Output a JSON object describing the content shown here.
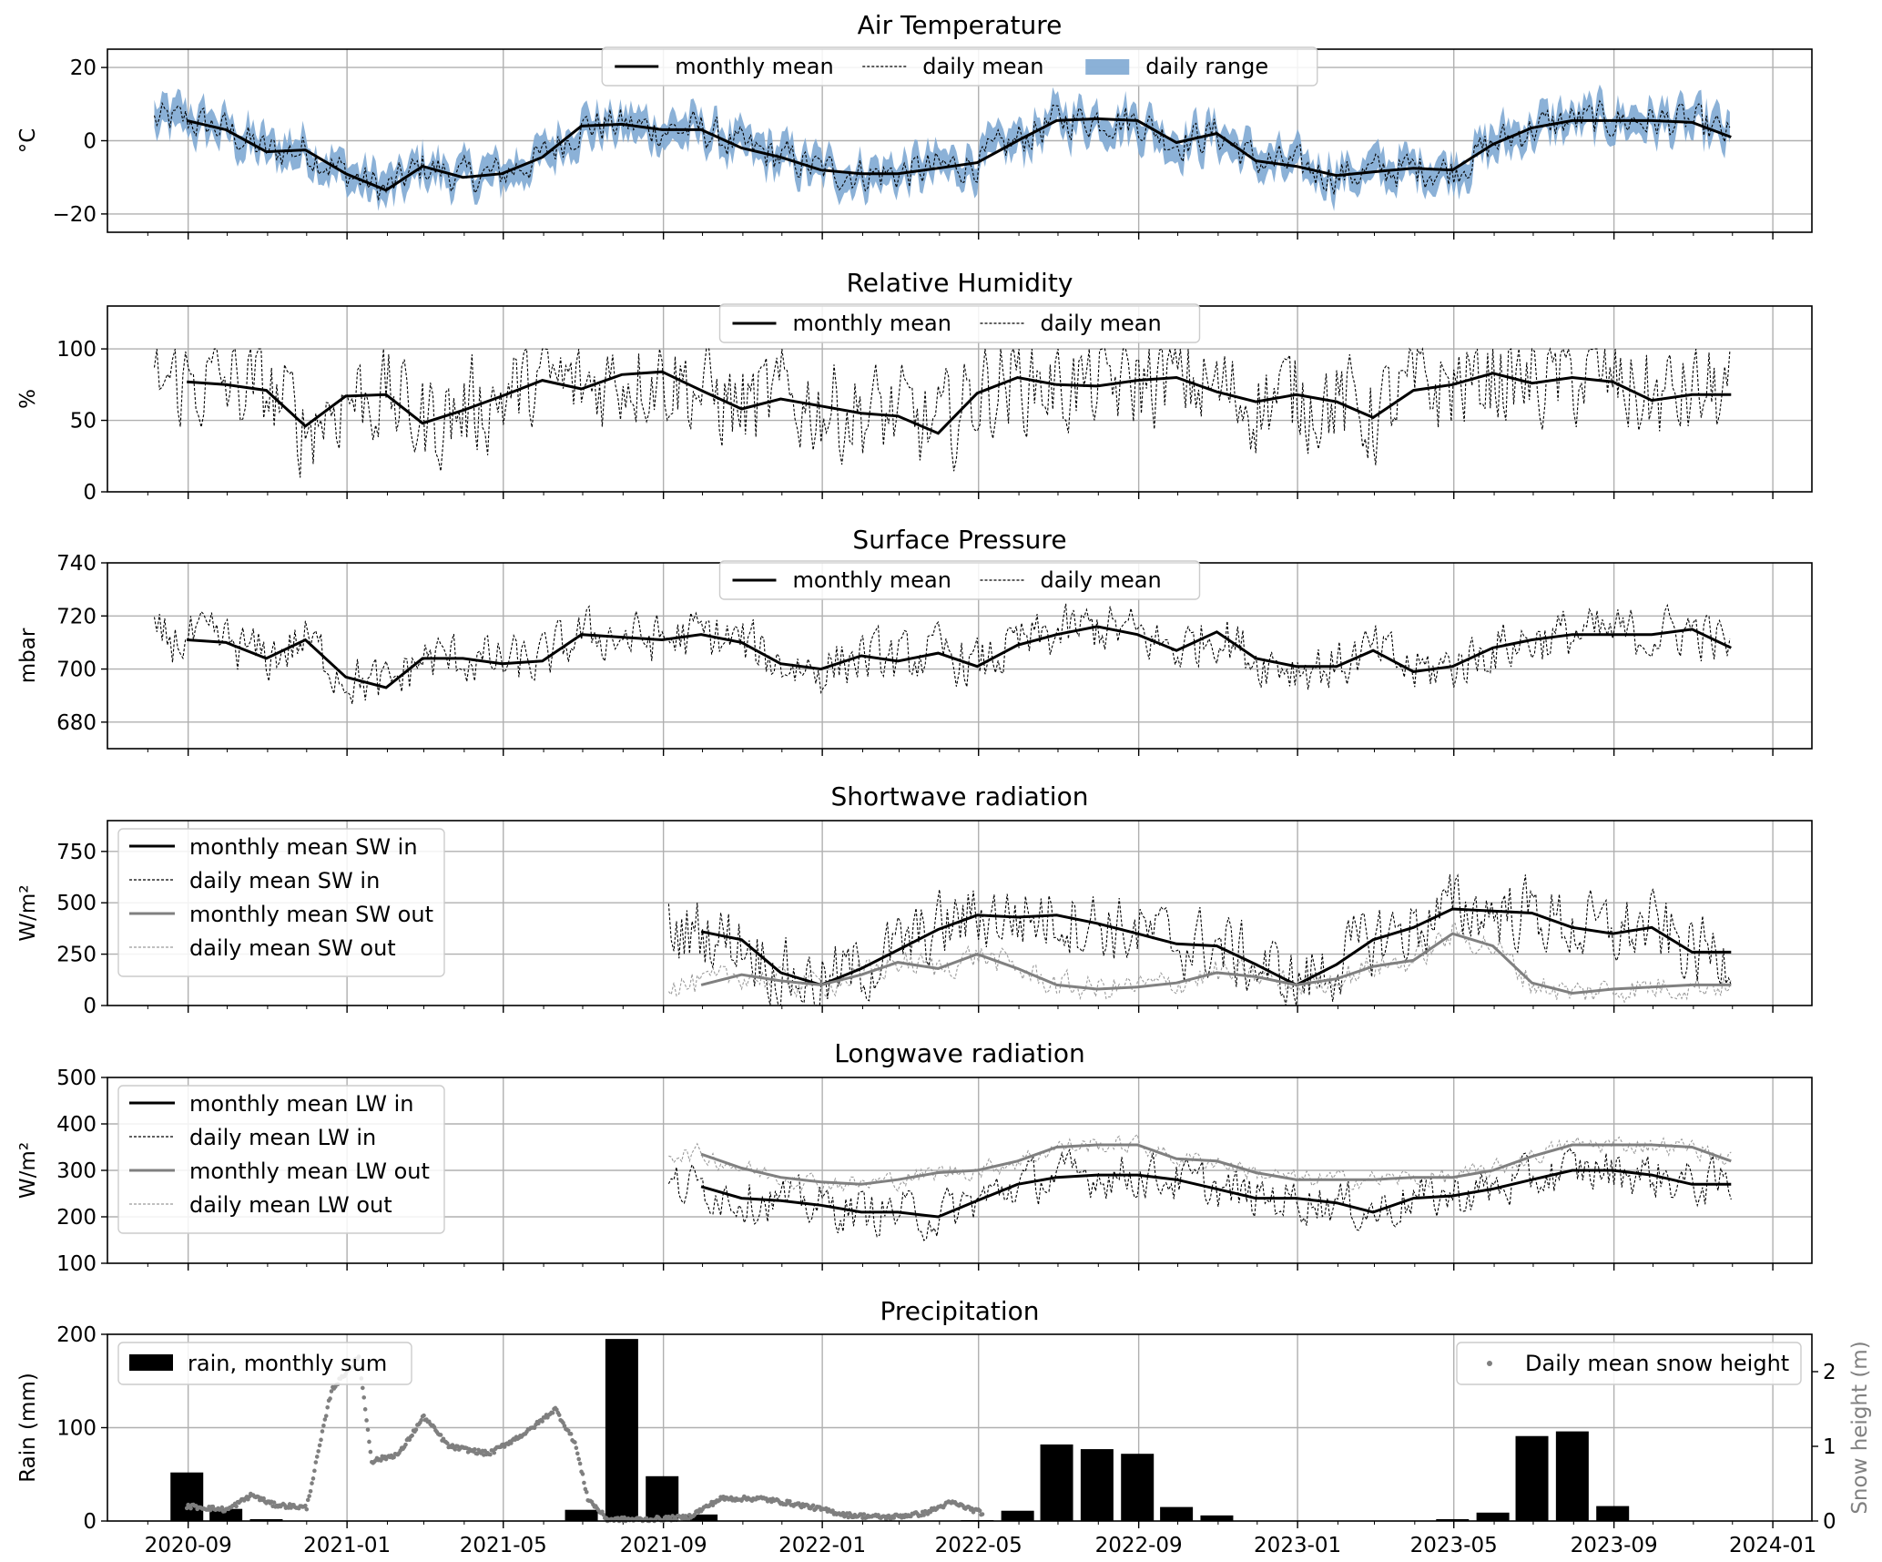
{
  "chart_data": [
    {
      "type": "line",
      "id": "temp",
      "title": "Air Temperature",
      "ylabel": "°C",
      "ylim": [
        -25,
        25
      ],
      "yticks": [
        -20,
        0,
        20
      ],
      "ytick_labels": [
        "−20",
        "0",
        "20"
      ],
      "legend": {
        "placement": "top-center",
        "layout": "row",
        "entries": [
          "monthly mean",
          "daily mean",
          "daily range"
        ]
      },
      "series": [
        {
          "name": "monthly mean",
          "style": "solid",
          "color": "#000000",
          "x": [
            "2020-08-31",
            "2020-09-30",
            "2020-10-31",
            "2020-11-30",
            "2020-12-31",
            "2021-01-31",
            "2021-02-28",
            "2021-03-31",
            "2021-04-30",
            "2021-05-31",
            "2021-06-30",
            "2021-07-31",
            "2021-08-31",
            "2021-09-30",
            "2021-10-31",
            "2021-11-30",
            "2021-12-31",
            "2022-01-31",
            "2022-02-28",
            "2022-03-31",
            "2022-04-30",
            "2022-05-31",
            "2022-06-30",
            "2022-07-31",
            "2022-08-31",
            "2022-09-30",
            "2022-10-31",
            "2022-11-30",
            "2022-12-31",
            "2023-01-31",
            "2023-02-28",
            "2023-03-31",
            "2023-04-30",
            "2023-05-31",
            "2023-06-30",
            "2023-07-31",
            "2023-08-31",
            "2023-09-30",
            "2023-10-31",
            "2023-11-30"
          ],
          "y": [
            5.5,
            3,
            -3,
            -2.5,
            -9,
            -13.5,
            -7,
            -10,
            -9,
            -4.5,
            4,
            4.5,
            3,
            3,
            -2,
            -4.5,
            -8,
            -9,
            -9,
            -7.5,
            -6,
            0,
            5.5,
            6,
            5.5,
            -0.5,
            2,
            -5.5,
            -7,
            -9.5,
            -8.5,
            -7.5,
            -8,
            -1,
            3.5,
            5.5,
            5.5,
            5.5,
            5,
            1
          ]
        },
        {
          "name": "daily mean",
          "style": "dashed",
          "color": "#000000",
          "note": "daily values fluctuating about the monthly mean"
        },
        {
          "name": "daily range",
          "style": "fill",
          "color": "#7ea9d3"
        }
      ]
    },
    {
      "type": "line",
      "id": "rh",
      "title": "Relative Humidity",
      "ylabel": "%",
      "ylim": [
        0,
        130
      ],
      "yticks": [
        0,
        50,
        100
      ],
      "ytick_labels": [
        "0",
        "50",
        "100"
      ],
      "legend": {
        "placement": "top-center",
        "layout": "row",
        "entries": [
          "monthly mean",
          "daily mean"
        ]
      },
      "series": [
        {
          "name": "monthly mean",
          "style": "solid",
          "color": "#000000",
          "x": [
            "2020-08-31",
            "2020-09-30",
            "2020-10-31",
            "2020-11-30",
            "2020-12-31",
            "2021-01-31",
            "2021-02-28",
            "2021-03-31",
            "2021-04-30",
            "2021-05-31",
            "2021-06-30",
            "2021-07-31",
            "2021-08-31",
            "2021-09-30",
            "2021-10-31",
            "2021-11-30",
            "2021-12-31",
            "2022-01-31",
            "2022-02-28",
            "2022-03-31",
            "2022-04-30",
            "2022-05-31",
            "2022-06-30",
            "2022-07-31",
            "2022-08-31",
            "2022-09-30",
            "2022-10-31",
            "2022-11-30",
            "2022-12-31",
            "2023-01-31",
            "2023-02-28",
            "2023-03-31",
            "2023-04-30",
            "2023-05-31",
            "2023-06-30",
            "2023-07-31",
            "2023-08-31",
            "2023-09-30",
            "2023-10-31",
            "2023-11-30"
          ],
          "y": [
            77,
            75,
            71,
            46,
            67,
            68,
            48,
            57,
            67,
            78,
            72,
            82,
            84,
            71,
            58,
            65,
            60,
            55,
            53,
            41,
            69,
            80,
            75,
            74,
            78,
            80,
            70,
            63,
            68,
            63,
            52,
            71,
            75,
            83,
            76,
            80,
            77,
            64,
            68,
            68
          ]
        },
        {
          "name": "daily mean",
          "style": "dashed",
          "color": "#000000"
        }
      ]
    },
    {
      "type": "line",
      "id": "pres",
      "title": "Surface Pressure",
      "ylabel": "mbar",
      "ylim": [
        670,
        740
      ],
      "yticks": [
        680,
        700,
        720,
        740
      ],
      "ytick_labels": [
        "680",
        "700",
        "720",
        "740"
      ],
      "legend": {
        "placement": "top-center",
        "layout": "row",
        "entries": [
          "monthly mean",
          "daily mean"
        ]
      },
      "series": [
        {
          "name": "monthly mean",
          "style": "solid",
          "color": "#000000",
          "x": [
            "2020-08-31",
            "2020-09-30",
            "2020-10-31",
            "2020-11-30",
            "2020-12-31",
            "2021-01-31",
            "2021-02-28",
            "2021-03-31",
            "2021-04-30",
            "2021-05-31",
            "2021-06-30",
            "2021-07-31",
            "2021-08-31",
            "2021-09-30",
            "2021-10-31",
            "2021-11-30",
            "2021-12-31",
            "2022-01-31",
            "2022-02-28",
            "2022-03-31",
            "2022-04-30",
            "2022-05-31",
            "2022-06-30",
            "2022-07-31",
            "2022-08-31",
            "2022-09-30",
            "2022-10-31",
            "2022-11-30",
            "2022-12-31",
            "2023-01-31",
            "2023-02-28",
            "2023-03-31",
            "2023-04-30",
            "2023-05-31",
            "2023-06-30",
            "2023-07-31",
            "2023-08-31",
            "2023-09-30",
            "2023-10-31",
            "2023-11-30"
          ],
          "y": [
            711,
            710,
            704,
            711,
            697,
            693,
            704,
            704,
            702,
            703,
            713,
            712,
            711,
            713,
            710,
            702,
            700,
            705,
            703,
            706,
            701,
            709,
            713,
            716,
            713,
            707,
            714,
            704,
            701,
            701,
            707,
            699,
            701,
            708,
            711,
            713,
            713,
            713,
            715,
            708
          ]
        },
        {
          "name": "daily mean",
          "style": "dashed",
          "color": "#000000"
        }
      ]
    },
    {
      "type": "line",
      "id": "sw",
      "title": "Shortwave radiation",
      "ylabel": "W/m²",
      "ylim": [
        0,
        900
      ],
      "yticks": [
        0,
        250,
        500,
        750
      ],
      "ytick_labels": [
        "0",
        "250",
        "500",
        "750"
      ],
      "legend": {
        "placement": "top-left",
        "layout": "column",
        "entries": [
          "monthly mean SW in",
          "daily mean SW in",
          "monthly mean SW out",
          "daily mean SW out"
        ]
      },
      "series": [
        {
          "name": "monthly mean SW in",
          "style": "solid",
          "color": "#000000",
          "x": [
            "2021-09-30",
            "2021-10-31",
            "2021-11-30",
            "2021-12-31",
            "2022-01-31",
            "2022-02-28",
            "2022-03-31",
            "2022-04-30",
            "2022-05-31",
            "2022-06-30",
            "2022-07-31",
            "2022-08-31",
            "2022-09-30",
            "2022-10-31",
            "2022-11-30",
            "2022-12-31",
            "2023-01-31",
            "2023-02-28",
            "2023-03-31",
            "2023-04-30",
            "2023-05-31",
            "2023-06-30",
            "2023-07-31",
            "2023-08-31",
            "2023-09-30",
            "2023-10-31",
            "2023-11-30"
          ],
          "y": [
            360,
            320,
            160,
            100,
            180,
            270,
            370,
            440,
            430,
            440,
            400,
            350,
            300,
            290,
            200,
            100,
            200,
            320,
            380,
            470,
            460,
            450,
            380,
            350,
            380,
            260,
            260
          ]
        },
        {
          "name": "daily mean SW in",
          "style": "dashed",
          "color": "#000000"
        },
        {
          "name": "monthly mean SW out",
          "style": "solid",
          "color": "#808080",
          "x": [
            "2021-09-30",
            "2021-10-31",
            "2021-11-30",
            "2021-12-31",
            "2022-01-31",
            "2022-02-28",
            "2022-03-31",
            "2022-04-30",
            "2022-05-31",
            "2022-06-30",
            "2022-07-31",
            "2022-08-31",
            "2022-09-30",
            "2022-10-31",
            "2022-11-30",
            "2022-12-31",
            "2023-01-31",
            "2023-02-28",
            "2023-03-31",
            "2023-04-30",
            "2023-05-31",
            "2023-06-30",
            "2023-07-31",
            "2023-08-31",
            "2023-09-30",
            "2023-10-31",
            "2023-11-30"
          ],
          "y": [
            100,
            150,
            120,
            100,
            150,
            210,
            180,
            250,
            180,
            100,
            80,
            90,
            110,
            160,
            140,
            100,
            130,
            190,
            220,
            350,
            290,
            110,
            60,
            80,
            90,
            100,
            100
          ]
        },
        {
          "name": "daily mean SW out",
          "style": "dashed",
          "color": "#9a9a9a"
        }
      ]
    },
    {
      "type": "line",
      "id": "lw",
      "title": "Longwave radiation",
      "ylabel": "W/m²",
      "ylim": [
        100,
        500
      ],
      "yticks": [
        100,
        200,
        300,
        400,
        500
      ],
      "ytick_labels": [
        "100",
        "200",
        "300",
        "400",
        "500"
      ],
      "legend": {
        "placement": "top-left",
        "layout": "column",
        "entries": [
          "monthly mean LW in",
          "daily mean LW in",
          "monthly mean LW out",
          "daily mean LW out"
        ]
      },
      "series": [
        {
          "name": "monthly mean LW in",
          "style": "solid",
          "color": "#000000",
          "x": [
            "2021-09-30",
            "2021-10-31",
            "2021-11-30",
            "2021-12-31",
            "2022-01-31",
            "2022-02-28",
            "2022-03-31",
            "2022-04-30",
            "2022-05-31",
            "2022-06-30",
            "2022-07-31",
            "2022-08-31",
            "2022-09-30",
            "2022-10-31",
            "2022-11-30",
            "2022-12-31",
            "2023-01-31",
            "2023-02-28",
            "2023-03-31",
            "2023-04-30",
            "2023-05-31",
            "2023-06-30",
            "2023-07-31",
            "2023-08-31",
            "2023-09-30",
            "2023-10-31",
            "2023-11-30"
          ],
          "y": [
            265,
            240,
            235,
            225,
            210,
            210,
            200,
            235,
            270,
            285,
            290,
            290,
            280,
            260,
            240,
            240,
            230,
            210,
            240,
            245,
            260,
            280,
            300,
            300,
            290,
            270,
            270
          ]
        },
        {
          "name": "daily mean LW in",
          "style": "dashed",
          "color": "#000000"
        },
        {
          "name": "monthly mean LW out",
          "style": "solid",
          "color": "#808080",
          "x": [
            "2021-09-30",
            "2021-10-31",
            "2021-11-30",
            "2021-12-31",
            "2022-01-31",
            "2022-02-28",
            "2022-03-31",
            "2022-04-30",
            "2022-05-31",
            "2022-06-30",
            "2022-07-31",
            "2022-08-31",
            "2022-09-30",
            "2022-10-31",
            "2022-11-30",
            "2022-12-31",
            "2023-01-31",
            "2023-02-28",
            "2023-03-31",
            "2023-04-30",
            "2023-05-31",
            "2023-06-30",
            "2023-07-31",
            "2023-08-31",
            "2023-09-30",
            "2023-10-31",
            "2023-11-30"
          ],
          "y": [
            335,
            305,
            285,
            275,
            270,
            280,
            295,
            300,
            320,
            350,
            355,
            355,
            325,
            320,
            295,
            280,
            280,
            280,
            285,
            285,
            300,
            330,
            355,
            355,
            355,
            350,
            320
          ]
        },
        {
          "name": "daily mean LW out",
          "style": "dashed",
          "color": "#9a9a9a"
        }
      ]
    },
    {
      "type": "bar",
      "id": "precip",
      "title": "Precipitation",
      "ylabel": "Rain (mm)",
      "ylim": [
        0,
        200
      ],
      "yticks": [
        0,
        100,
        200
      ],
      "ytick_labels": [
        "0",
        "100",
        "200"
      ],
      "y2label": "Snow height (m)",
      "y2lim": [
        0,
        2.5
      ],
      "y2ticks": [
        0,
        1,
        2
      ],
      "y2tick_labels": [
        "0",
        "1",
        "2"
      ],
      "legend": {
        "entries": [
          "rain, monthly sum",
          "Daily mean snow height"
        ],
        "placement": [
          "upper-left",
          "upper-right"
        ]
      },
      "bars": {
        "name": "rain, monthly sum",
        "color": "#000000",
        "x": [
          "2020-08-31",
          "2020-09-30",
          "2020-10-31",
          "2021-06-30",
          "2021-07-31",
          "2021-08-31",
          "2021-09-30",
          "2022-04-30",
          "2022-05-31",
          "2022-06-30",
          "2022-07-31",
          "2022-08-31",
          "2022-09-30",
          "2022-10-31",
          "2023-04-30",
          "2023-05-31",
          "2023-06-30",
          "2023-07-31",
          "2023-08-31",
          "2023-09-30"
        ],
        "y": [
          52,
          13,
          2,
          12,
          195,
          48,
          7,
          1,
          11,
          82,
          77,
          72,
          15,
          6,
          2,
          9,
          91,
          96,
          16,
          0
        ]
      },
      "snow": {
        "name": "Daily mean snow height",
        "color": "#7f7f7f",
        "points": [
          [
            "2020-08-31",
            0.2
          ],
          [
            "2020-10-01",
            0.15
          ],
          [
            "2020-10-20",
            0.35
          ],
          [
            "2020-11-05",
            0.22
          ],
          [
            "2020-12-01",
            0.18
          ],
          [
            "2020-12-20",
            1.75
          ],
          [
            "2021-01-10",
            2.2
          ],
          [
            "2021-01-20",
            0.8
          ],
          [
            "2021-02-10",
            0.9
          ],
          [
            "2021-03-01",
            1.4
          ],
          [
            "2021-03-20",
            1.0
          ],
          [
            "2021-04-20",
            0.9
          ],
          [
            "2021-05-20",
            1.2
          ],
          [
            "2021-06-10",
            1.5
          ],
          [
            "2021-06-25",
            1.05
          ],
          [
            "2021-07-05",
            0.3
          ],
          [
            "2021-07-20",
            0.02
          ],
          [
            "2021-08-20",
            0.02
          ],
          [
            "2021-09-20",
            0.05
          ],
          [
            "2021-10-15",
            0.3
          ],
          [
            "2021-11-15",
            0.3
          ],
          [
            "2021-12-20",
            0.2
          ],
          [
            "2022-01-20",
            0.08
          ],
          [
            "2022-02-20",
            0.05
          ],
          [
            "2022-03-20",
            0.1
          ],
          [
            "2022-04-10",
            0.25
          ],
          [
            "2022-05-05",
            0.1
          ]
        ]
      }
    }
  ],
  "x_axis": {
    "range": [
      "2020-07-01",
      "2024-01-31"
    ],
    "major_ticks": [
      "2020-09-01",
      "2021-01-01",
      "2021-05-01",
      "2021-09-01",
      "2022-01-01",
      "2022-05-01",
      "2022-09-01",
      "2023-01-01",
      "2023-05-01",
      "2023-09-01",
      "2024-01-01"
    ],
    "major_tick_labels": [
      "2020-09",
      "2021-01",
      "2021-05",
      "2021-09",
      "2022-01",
      "2022-05",
      "2022-09",
      "2023-01",
      "2023-05",
      "2023-09",
      "2024-01"
    ]
  }
}
